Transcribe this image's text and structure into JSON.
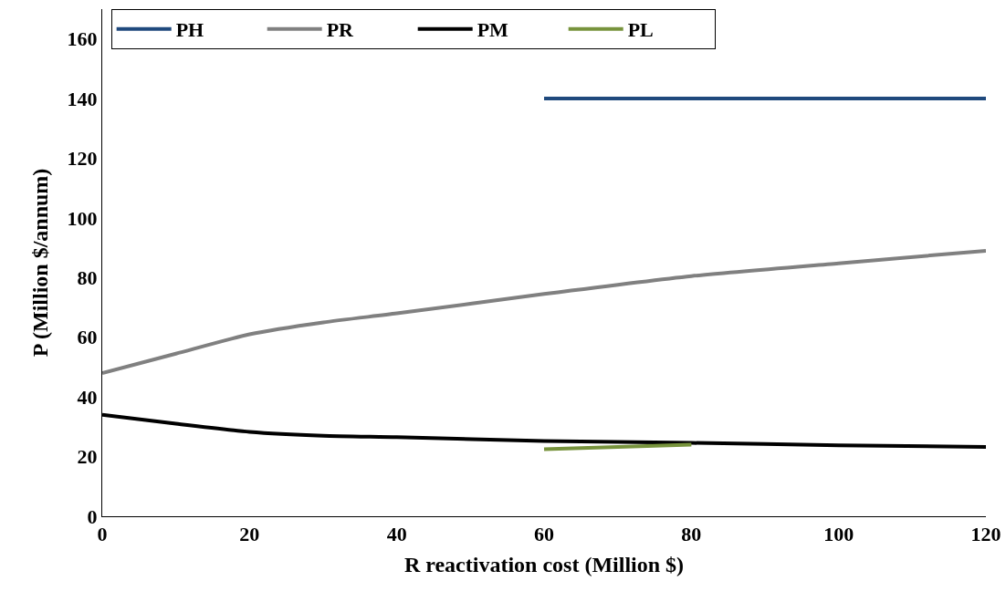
{
  "chart_data": {
    "type": "line",
    "xlabel": "R reactivation cost (Million $)",
    "ylabel": "P (Million $/annum)",
    "xlim": [
      0,
      120
    ],
    "xticks": [
      0,
      20,
      40,
      60,
      80,
      100,
      120
    ],
    "ylim": [
      0,
      170
    ],
    "yticks": [
      0,
      20,
      40,
      60,
      80,
      100,
      120,
      140,
      160
    ],
    "grid": false,
    "legend": "top left",
    "marker": "none",
    "line_style": "solid",
    "series": [
      {
        "name": "PH",
        "color": "#1f497d",
        "x": [
          60,
          120
        ],
        "values": [
          140,
          140
        ]
      },
      {
        "name": "PR",
        "color": "#808080",
        "x": [
          0,
          10,
          20,
          30,
          40,
          60,
          80,
          100,
          120
        ],
        "values": [
          48,
          54.5,
          61,
          65,
          68,
          74.5,
          80.5,
          84.8,
          89
        ]
      },
      {
        "name": "PM",
        "color": "#000000",
        "x": [
          0,
          10,
          20,
          30,
          40,
          60,
          80,
          100,
          120
        ],
        "values": [
          34,
          31,
          28.3,
          27,
          26.5,
          25.2,
          24.6,
          23.8,
          23.2
        ]
      },
      {
        "name": "PL",
        "color": "#77933c",
        "x": [
          60,
          80
        ],
        "values": [
          22.5,
          24
        ]
      }
    ]
  }
}
